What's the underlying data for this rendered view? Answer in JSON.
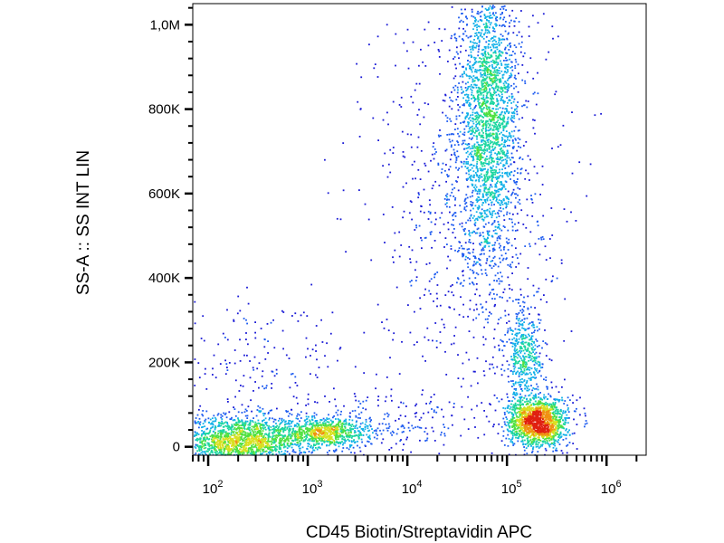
{
  "chart_data": {
    "type": "scatter",
    "style": "density dot plot (pseudocolor)",
    "xlabel": "CD45 Biotin/Streptavidin APC",
    "ylabel": "SS-A :: SS INT LIN",
    "x_scale": "log",
    "xlim": [
      70,
      2500000
    ],
    "ylim": [
      -20000,
      1050000
    ],
    "x_ticks": [
      {
        "value": 100,
        "base": "10",
        "exp": "2"
      },
      {
        "value": 1000,
        "base": "10",
        "exp": "3"
      },
      {
        "value": 10000,
        "base": "10",
        "exp": "4"
      },
      {
        "value": 100000,
        "base": "10",
        "exp": "5"
      },
      {
        "value": 1000000,
        "base": "10",
        "exp": "6"
      }
    ],
    "y_ticks": [
      {
        "value": 0,
        "label": "0"
      },
      {
        "value": 200000,
        "label": "200K"
      },
      {
        "value": 400000,
        "label": "400K"
      },
      {
        "value": 600000,
        "label": "600K"
      },
      {
        "value": 800000,
        "label": "800K"
      },
      {
        "value": 1000000,
        "label": "1,0M"
      }
    ],
    "populations": [
      {
        "x_center": 200,
        "y_center": 15000,
        "x_spread_decades": 0.35,
        "y_spread": 30000,
        "count": 1800
      },
      {
        "x_center": 1500,
        "y_center": 35000,
        "x_spread_decades": 0.22,
        "y_spread": 18000,
        "count": 700
      },
      {
        "x_center": 65000,
        "y_center": 780000,
        "x_spread_decades": 0.15,
        "y_spread": 170000,
        "count": 2200
      },
      {
        "x_center": 40000,
        "y_center": 600000,
        "x_spread_decades": 0.45,
        "y_spread": 260000,
        "count": 900
      },
      {
        "x_center": 200000,
        "y_center": 60000,
        "x_spread_decades": 0.15,
        "y_spread": 30000,
        "count": 1500
      },
      {
        "x_center": 150000,
        "y_center": 220000,
        "x_spread_decades": 0.1,
        "y_spread": 60000,
        "count": 450
      },
      {
        "x_center": 5000,
        "y_center": 50000,
        "x_spread_decades": 0.55,
        "y_spread": 40000,
        "count": 250
      },
      {
        "x_center": 300,
        "y_center": 180000,
        "x_spread_decades": 0.45,
        "y_spread": 100000,
        "count": 200
      }
    ],
    "density_colors": [
      "#1a1ad6",
      "#1e5cf0",
      "#12b0e8",
      "#1cd6a0",
      "#50e040",
      "#d8e020",
      "#f09010",
      "#e02010"
    ],
    "grid": false
  }
}
